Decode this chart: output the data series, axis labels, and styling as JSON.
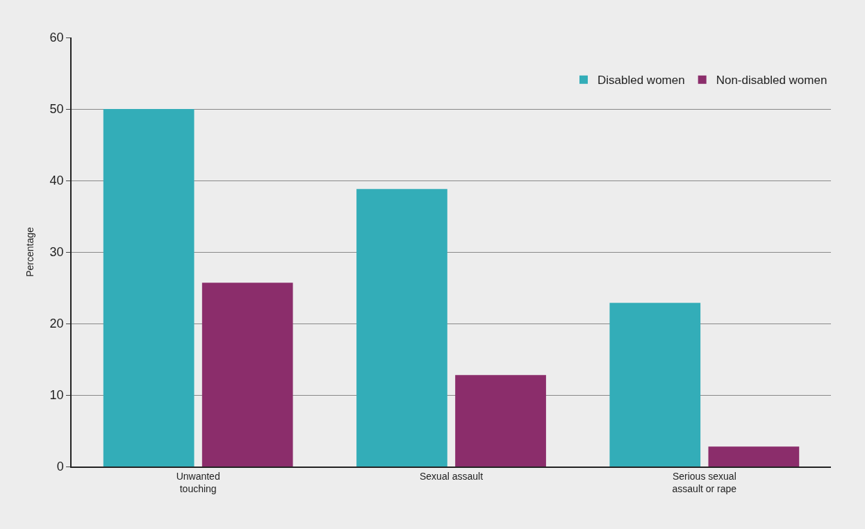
{
  "chart_data": {
    "type": "bar",
    "ylabel": "Percentage",
    "categories": [
      "Unwanted touching",
      "Sexual assault",
      "Serious sexual assault or rape"
    ],
    "series": [
      {
        "name": "Disabled women",
        "color": "#33adb8",
        "values": [
          50,
          38.8,
          22.9
        ]
      },
      {
        "name": "Non-disabled women",
        "color": "#8b2d6b",
        "values": [
          25.7,
          12.8,
          2.8
        ]
      }
    ],
    "ylim": [
      0,
      60
    ],
    "yticks": [
      0,
      10,
      20,
      30,
      40,
      50,
      60
    ],
    "grid": "y",
    "legend": "top right"
  }
}
